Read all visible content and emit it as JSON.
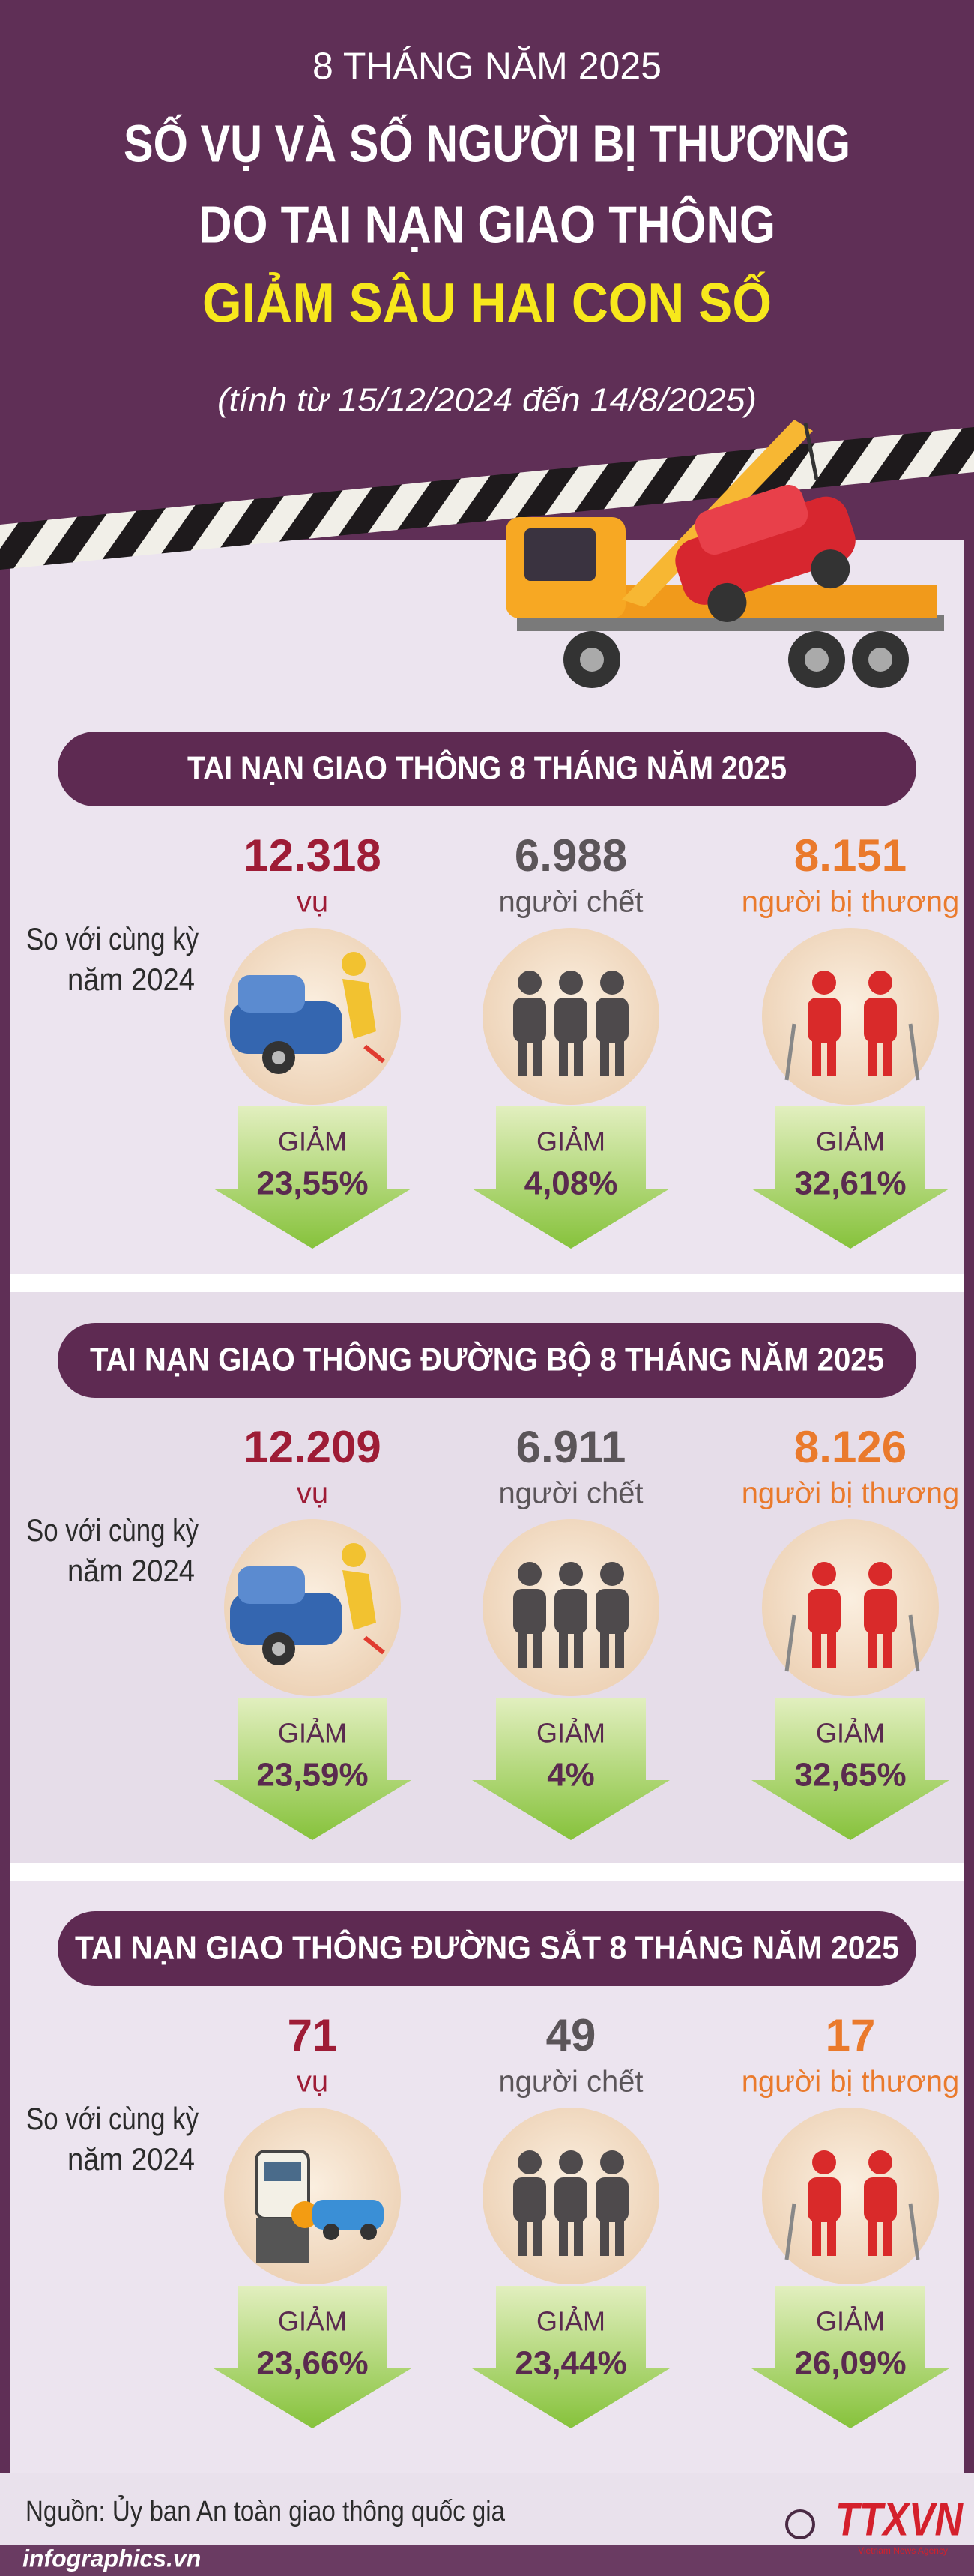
{
  "header": {
    "top_line": "8 THÁNG NĂM 2025",
    "title_line1": "SỐ VỤ VÀ SỐ NGƯỜI BỊ THƯƠNG",
    "title_line2": "DO TAI NẠN GIAO THÔNG",
    "highlight": "GIẢM SÂU HAI CON SỐ",
    "period": "(tính từ 15/12/2024 đến 14/8/2025)"
  },
  "sections": [
    {
      "title": "TAI NẠN GIAO THÔNG 8 THÁNG NĂM 2025",
      "compare": [
        "So với cùng kỳ",
        "năm 2024"
      ],
      "stats": [
        {
          "value": "12.318",
          "unit": "vụ",
          "change_label": "GIẢM",
          "change": "23,55%"
        },
        {
          "value": "6.988",
          "unit": "người chết",
          "change_label": "GIẢM",
          "change": "4,08%"
        },
        {
          "value": "8.151",
          "unit": "người bị thương",
          "change_label": "GIẢM",
          "change": "32,61%"
        }
      ]
    },
    {
      "title": "TAI NẠN GIAO THÔNG ĐƯỜNG BỘ 8 THÁNG NĂM 2025",
      "compare": [
        "So với cùng kỳ",
        "năm 2024"
      ],
      "stats": [
        {
          "value": "12.209",
          "unit": "vụ",
          "change_label": "GIẢM",
          "change": "23,59%"
        },
        {
          "value": "6.911",
          "unit": "người chết",
          "change_label": "GIẢM",
          "change": "4%"
        },
        {
          "value": "8.126",
          "unit": "người bị thương",
          "change_label": "GIẢM",
          "change": "32,65%"
        }
      ]
    },
    {
      "title": "TAI NẠN GIAO THÔNG ĐƯỜNG SẮT 8 THÁNG NĂM 2025",
      "compare": [
        "So với cùng kỳ",
        "năm 2024"
      ],
      "stats": [
        {
          "value": "71",
          "unit": "vụ",
          "change_label": "GIẢM",
          "change": "23,66%"
        },
        {
          "value": "49",
          "unit": "người chết",
          "change_label": "GIẢM",
          "change": "23,44%"
        },
        {
          "value": "17",
          "unit": "người bị thương",
          "change_label": "GIẢM",
          "change": "26,09%"
        }
      ]
    }
  ],
  "footer": {
    "source": "Nguồn: Ủy ban An toàn giao thông quốc gia",
    "website": "infographics.vn",
    "logo": "TTXVN",
    "logo_sub": "Vietnam News Agency"
  }
}
